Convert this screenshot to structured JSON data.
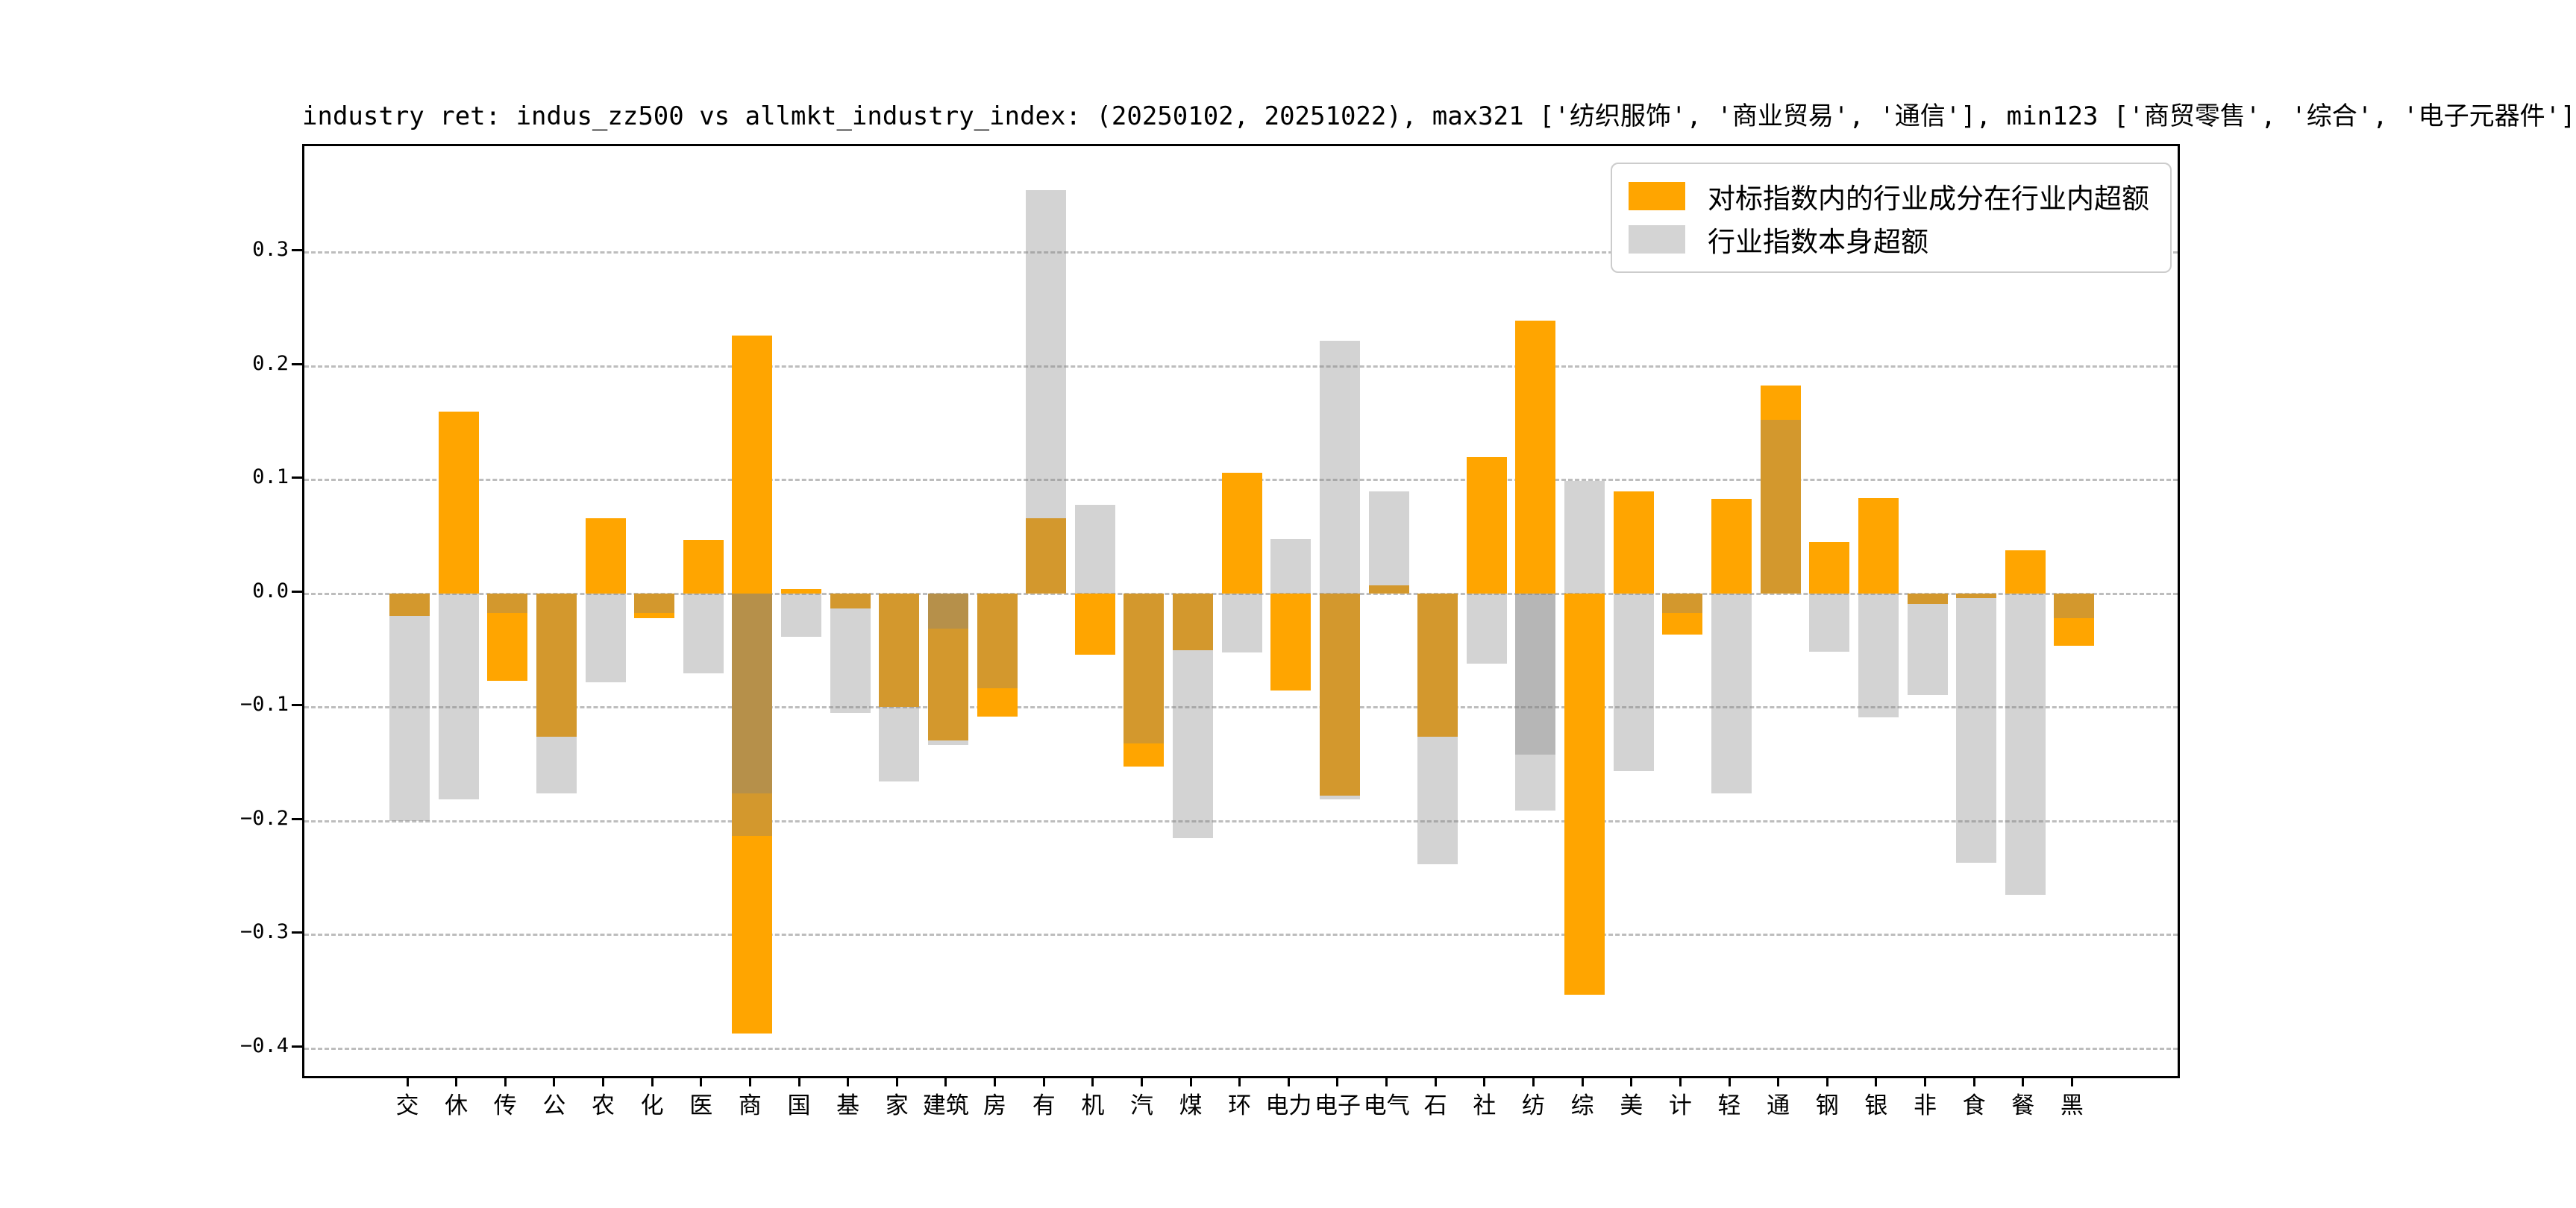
{
  "chart_data": {
    "type": "bar",
    "title": "industry ret: indus_zz500 vs allmkt_industry_index: (20250102, 20251022), max321 ['纺织服饰', '商业贸易', '通信'], min123 ['商贸零售', '综合', '电子元器件']",
    "xlabel": "",
    "ylabel": "",
    "grid": "horizontal dashed",
    "legend_position": "upper right",
    "ylim": [
      -0.4243,
      0.3934
    ],
    "yticks": {
      "values": [
        0.3,
        0.2,
        0.1,
        0.0,
        -0.1,
        -0.2,
        -0.3,
        -0.4
      ],
      "labels": [
        "0.3",
        "0.2",
        "0.1",
        "0.0",
        "−0.1",
        "−0.2",
        "−0.3",
        "−0.4"
      ]
    },
    "categories": [
      "交",
      "休",
      "传",
      "公",
      "农",
      "化",
      "医",
      "商",
      "国",
      "基",
      "家",
      "建筑",
      "房",
      "有",
      "机",
      "汽",
      "煤",
      "环",
      "电力",
      "电子",
      "电气",
      "石",
      "社",
      "纺",
      "综",
      "美",
      "计",
      "轻",
      "通",
      "钢",
      "银",
      "非",
      "食",
      "餐",
      "黑"
    ],
    "series": [
      {
        "name": "对标指数内的行业成分在行业内超额",
        "color": "#FFA500",
        "values": [
          -0.02,
          0.16,
          -0.077,
          -0.126,
          0.066,
          -0.022,
          0.047,
          [
            0.227,
            -0.387
          ],
          0.004,
          -0.013,
          -0.1,
          -0.129,
          -0.108,
          0.066,
          -0.054,
          -0.152,
          -0.05,
          0.106,
          -0.085,
          -0.178,
          0.007,
          -0.126,
          0.12,
          0.24,
          -0.353,
          0.09,
          -0.036,
          0.083,
          0.183,
          0.045,
          0.084,
          -0.009,
          -0.004,
          0.038,
          -0.046
        ]
      },
      {
        "name": "行业指数本身超额",
        "color": "rgba(128,128,128,0.35)",
        "values": [
          -0.2,
          -0.181,
          -0.017,
          -0.176,
          -0.078,
          -0.017,
          -0.07,
          [
            -0.176,
            -0.213
          ],
          -0.038,
          -0.105,
          -0.165,
          [
            -0.031,
            -0.133
          ],
          -0.083,
          0.355,
          0.078,
          -0.132,
          -0.215,
          -0.052,
          0.048,
          [
            0.222,
            -0.181
          ],
          0.09,
          -0.238,
          -0.062,
          [
            -0.142,
            -0.191
          ],
          0.099,
          -0.156,
          -0.017,
          -0.176,
          0.153,
          -0.051,
          -0.109,
          -0.089,
          -0.237,
          -0.265,
          -0.022
        ]
      }
    ]
  }
}
